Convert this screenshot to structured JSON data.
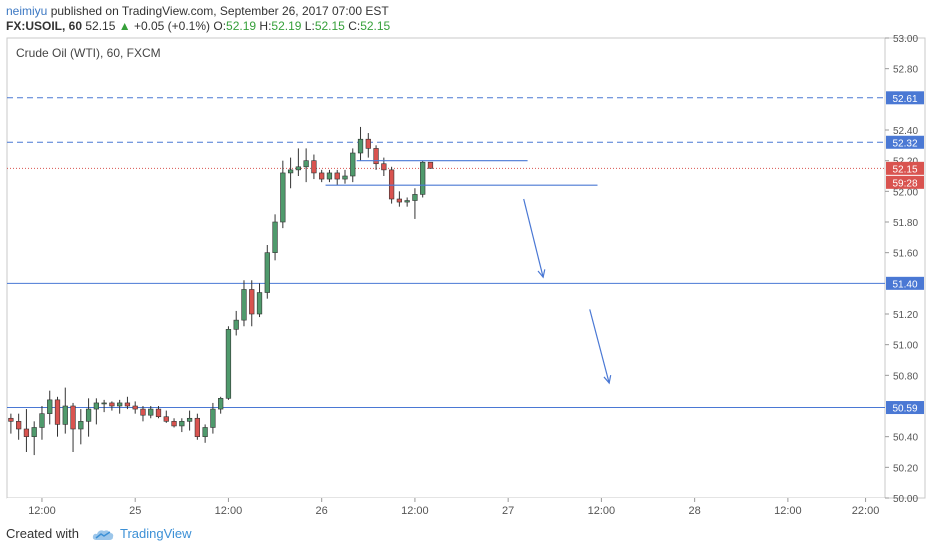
{
  "header": {
    "author": "neimiyu",
    "published_text": "published on TradingView.com, September 26, 2017 07:00 EST",
    "symbol": "FX:USOIL, 60",
    "last": "52.15",
    "change": "+0.05 (+0.1%)",
    "o_label": "O:",
    "o_val": "52.19",
    "h_label": "H:",
    "h_val": "52.19",
    "l_label": "L:",
    "l_val": "52.15",
    "c_label": "C:",
    "c_val": "52.15"
  },
  "footer": {
    "created_with": "Created with",
    "brand": "TradingView"
  },
  "colors": {
    "up": "#4f9a6c",
    "down": "#d9534f",
    "line": "#4a78d4",
    "price_badge": "#d9534f"
  },
  "chart_data": {
    "type": "candlestick",
    "title": "Crude Oil (WTI), 60, FXCM",
    "ylim": [
      50.0,
      53.0
    ],
    "y_ticks": [
      "53.00",
      "52.80",
      "52.40",
      "52.20",
      "52.00",
      "51.80",
      "51.60",
      "51.20",
      "51.00",
      "50.80",
      "50.40",
      "50.20",
      "50.00"
    ],
    "x_ticks": [
      {
        "label": "12:00",
        "i": 4
      },
      {
        "label": "25",
        "i": 16
      },
      {
        "label": "12:00",
        "i": 28
      },
      {
        "label": "26",
        "i": 40
      },
      {
        "label": "12:00",
        "i": 52
      },
      {
        "label": "27",
        "i": 64
      },
      {
        "label": "12:00",
        "i": 76
      },
      {
        "label": "28",
        "i": 88
      },
      {
        "label": "12:00",
        "i": 100
      },
      {
        "label": "22:00",
        "i": 110
      }
    ],
    "x_range": [
      -0.5,
      112.5
    ],
    "candles": [
      [
        50.52,
        50.55,
        50.42,
        50.5
      ],
      [
        50.5,
        50.55,
        50.38,
        50.45
      ],
      [
        50.45,
        50.58,
        50.3,
        50.4
      ],
      [
        50.4,
        50.5,
        50.28,
        50.46
      ],
      [
        50.46,
        50.6,
        50.38,
        50.55
      ],
      [
        50.55,
        50.7,
        50.48,
        50.64
      ],
      [
        50.64,
        50.66,
        50.4,
        50.48
      ],
      [
        50.48,
        50.72,
        50.42,
        50.6
      ],
      [
        50.6,
        50.62,
        50.3,
        50.45
      ],
      [
        50.45,
        50.58,
        50.35,
        50.5
      ],
      [
        50.5,
        50.65,
        50.4,
        50.58
      ],
      [
        50.58,
        50.65,
        50.48,
        50.62
      ],
      [
        50.62,
        50.64,
        50.56,
        50.62
      ],
      [
        50.62,
        50.63,
        50.57,
        50.6
      ],
      [
        50.6,
        50.64,
        50.55,
        50.62
      ],
      [
        50.62,
        50.66,
        50.58,
        50.6
      ],
      [
        50.6,
        50.63,
        50.55,
        50.58
      ],
      [
        50.58,
        50.6,
        50.5,
        50.54
      ],
      [
        50.54,
        50.6,
        50.52,
        50.58
      ],
      [
        50.58,
        50.6,
        50.52,
        50.53
      ],
      [
        50.53,
        50.57,
        50.49,
        50.5
      ],
      [
        50.5,
        50.52,
        50.46,
        50.47
      ],
      [
        50.47,
        50.52,
        50.43,
        50.5
      ],
      [
        50.5,
        50.57,
        50.44,
        50.52
      ],
      [
        50.52,
        50.55,
        50.38,
        50.4
      ],
      [
        50.4,
        50.48,
        50.36,
        50.46
      ],
      [
        50.46,
        50.62,
        50.42,
        50.58
      ],
      [
        50.58,
        50.66,
        50.55,
        50.65
      ],
      [
        50.65,
        51.12,
        50.64,
        51.1
      ],
      [
        51.1,
        51.22,
        51.06,
        51.16
      ],
      [
        51.16,
        51.42,
        51.12,
        51.36
      ],
      [
        51.36,
        51.42,
        51.12,
        51.2
      ],
      [
        51.2,
        51.4,
        51.18,
        51.34
      ],
      [
        51.34,
        51.65,
        51.3,
        51.6
      ],
      [
        51.6,
        51.85,
        51.55,
        51.8
      ],
      [
        51.8,
        52.2,
        51.76,
        52.12
      ],
      [
        52.12,
        52.22,
        52.02,
        52.14
      ],
      [
        52.14,
        52.28,
        52.1,
        52.16
      ],
      [
        52.16,
        52.28,
        52.06,
        52.2
      ],
      [
        52.2,
        52.24,
        52.08,
        52.12
      ],
      [
        52.12,
        52.14,
        52.06,
        52.08
      ],
      [
        52.08,
        52.14,
        52.06,
        52.12
      ],
      [
        52.12,
        52.14,
        52.04,
        52.08
      ],
      [
        52.08,
        52.14,
        52.05,
        52.1
      ],
      [
        52.1,
        52.28,
        52.06,
        52.25
      ],
      [
        52.25,
        52.42,
        52.2,
        52.34
      ],
      [
        52.34,
        52.38,
        52.22,
        52.28
      ],
      [
        52.28,
        52.3,
        52.14,
        52.18
      ],
      [
        52.18,
        52.22,
        52.1,
        52.14
      ],
      [
        52.14,
        52.16,
        51.92,
        51.95
      ],
      [
        51.95,
        52.0,
        51.9,
        51.93
      ],
      [
        51.93,
        51.96,
        51.9,
        51.94
      ],
      [
        51.94,
        52.02,
        51.82,
        51.98
      ],
      [
        51.98,
        52.2,
        51.96,
        52.19
      ],
      [
        52.19,
        52.19,
        52.15,
        52.15
      ]
    ],
    "horizontal_lines": [
      {
        "price": 52.61,
        "style": "dashed",
        "label": "52.61"
      },
      {
        "price": 52.32,
        "style": "dashed",
        "label": "52.32"
      },
      {
        "price": 51.4,
        "style": "solid",
        "label": "51.40"
      },
      {
        "price": 50.59,
        "style": "solid",
        "label": "50.59"
      }
    ],
    "last_price": {
      "price": 52.15,
      "label": "52.15",
      "countdown": "59:28"
    },
    "segments": [
      {
        "i0": 44.5,
        "p0": 52.2,
        "i1": 66.5,
        "p1": 52.2
      },
      {
        "i0": 40.5,
        "p0": 52.04,
        "i1": 75.5,
        "p1": 52.04
      }
    ],
    "arrows": [
      {
        "i0": 66.0,
        "p0": 51.95,
        "i1": 68.5,
        "p1": 51.44
      },
      {
        "i0": 74.5,
        "p0": 51.23,
        "i1": 77.0,
        "p1": 50.75
      }
    ]
  }
}
